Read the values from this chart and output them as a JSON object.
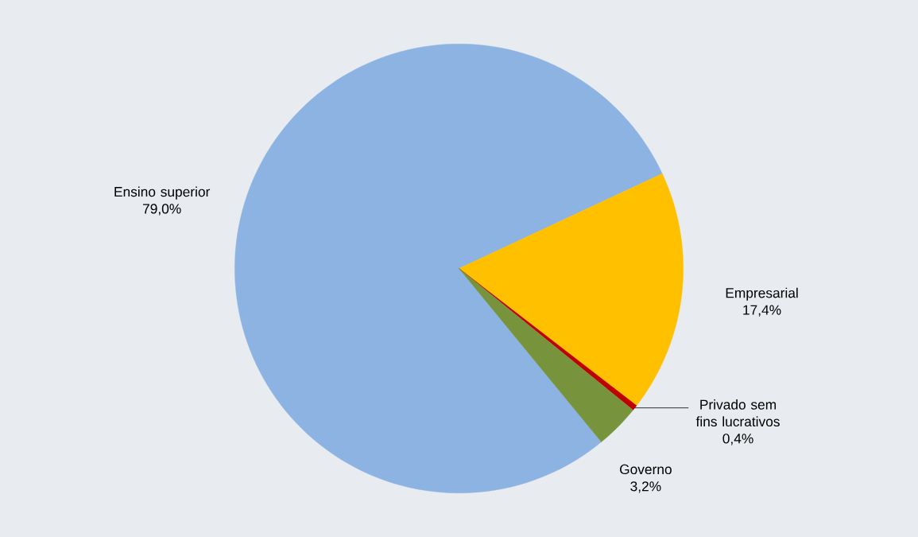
{
  "chart_data": {
    "type": "pie",
    "categories": [
      "Ensino superior",
      "Empresarial",
      "Privado sem fins lucrativos",
      "Governo"
    ],
    "values": [
      79.0,
      17.4,
      0.4,
      3.2
    ],
    "value_labels": [
      "79,0%",
      "17,4%",
      "0,4%",
      "3,2%"
    ],
    "colors": [
      "#8db3e2",
      "#ffc000",
      "#c00000",
      "#77933c"
    ]
  }
}
